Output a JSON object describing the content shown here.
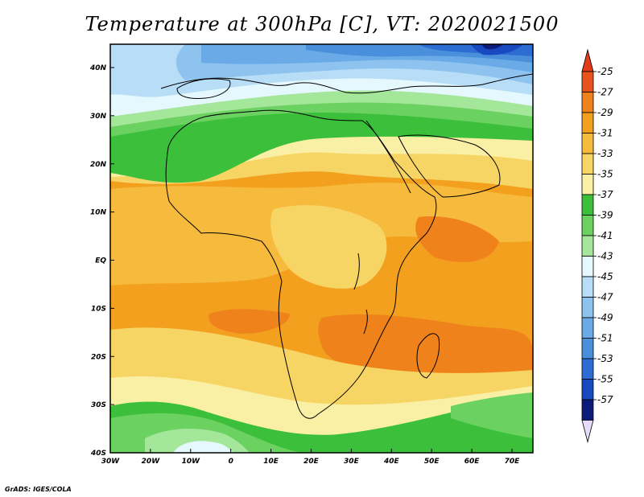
{
  "title": "Temperature at 300hPa [C], VT: 2020021500",
  "footer": "GrADS: IGES/COLA",
  "map": {
    "lat_labels": [
      "40N",
      "30N",
      "20N",
      "10N",
      "EQ",
      "10S",
      "20S",
      "30S",
      "40S"
    ],
    "lon_labels": [
      "30W",
      "20W",
      "10W",
      "0",
      "10E",
      "20E",
      "30E",
      "40E",
      "50E",
      "60E",
      "70E"
    ],
    "region": "Africa"
  },
  "colorbar": {
    "labels": [
      "-25",
      "-27",
      "-29",
      "-31",
      "-33",
      "-35",
      "-37",
      "-39",
      "-41",
      "-43",
      "-45",
      "-47",
      "-49",
      "-51",
      "-53",
      "-55",
      "-57"
    ],
    "colors": [
      "#e8531c",
      "#f0821b",
      "#f3a01f",
      "#f6bb3c",
      "#f7d565",
      "#faf0a5",
      "#3cbf3a",
      "#6bd161",
      "#a4e69a",
      "#e4f8fd",
      "#b8ddf6",
      "#8ec3f0",
      "#6aabe7",
      "#4a8fdc",
      "#2d6cd3",
      "#1849c0",
      "#0c1a7a"
    ],
    "top_arrow_color": "#e23a1b",
    "bottom_arrow_color": "#e5dcfa"
  }
}
